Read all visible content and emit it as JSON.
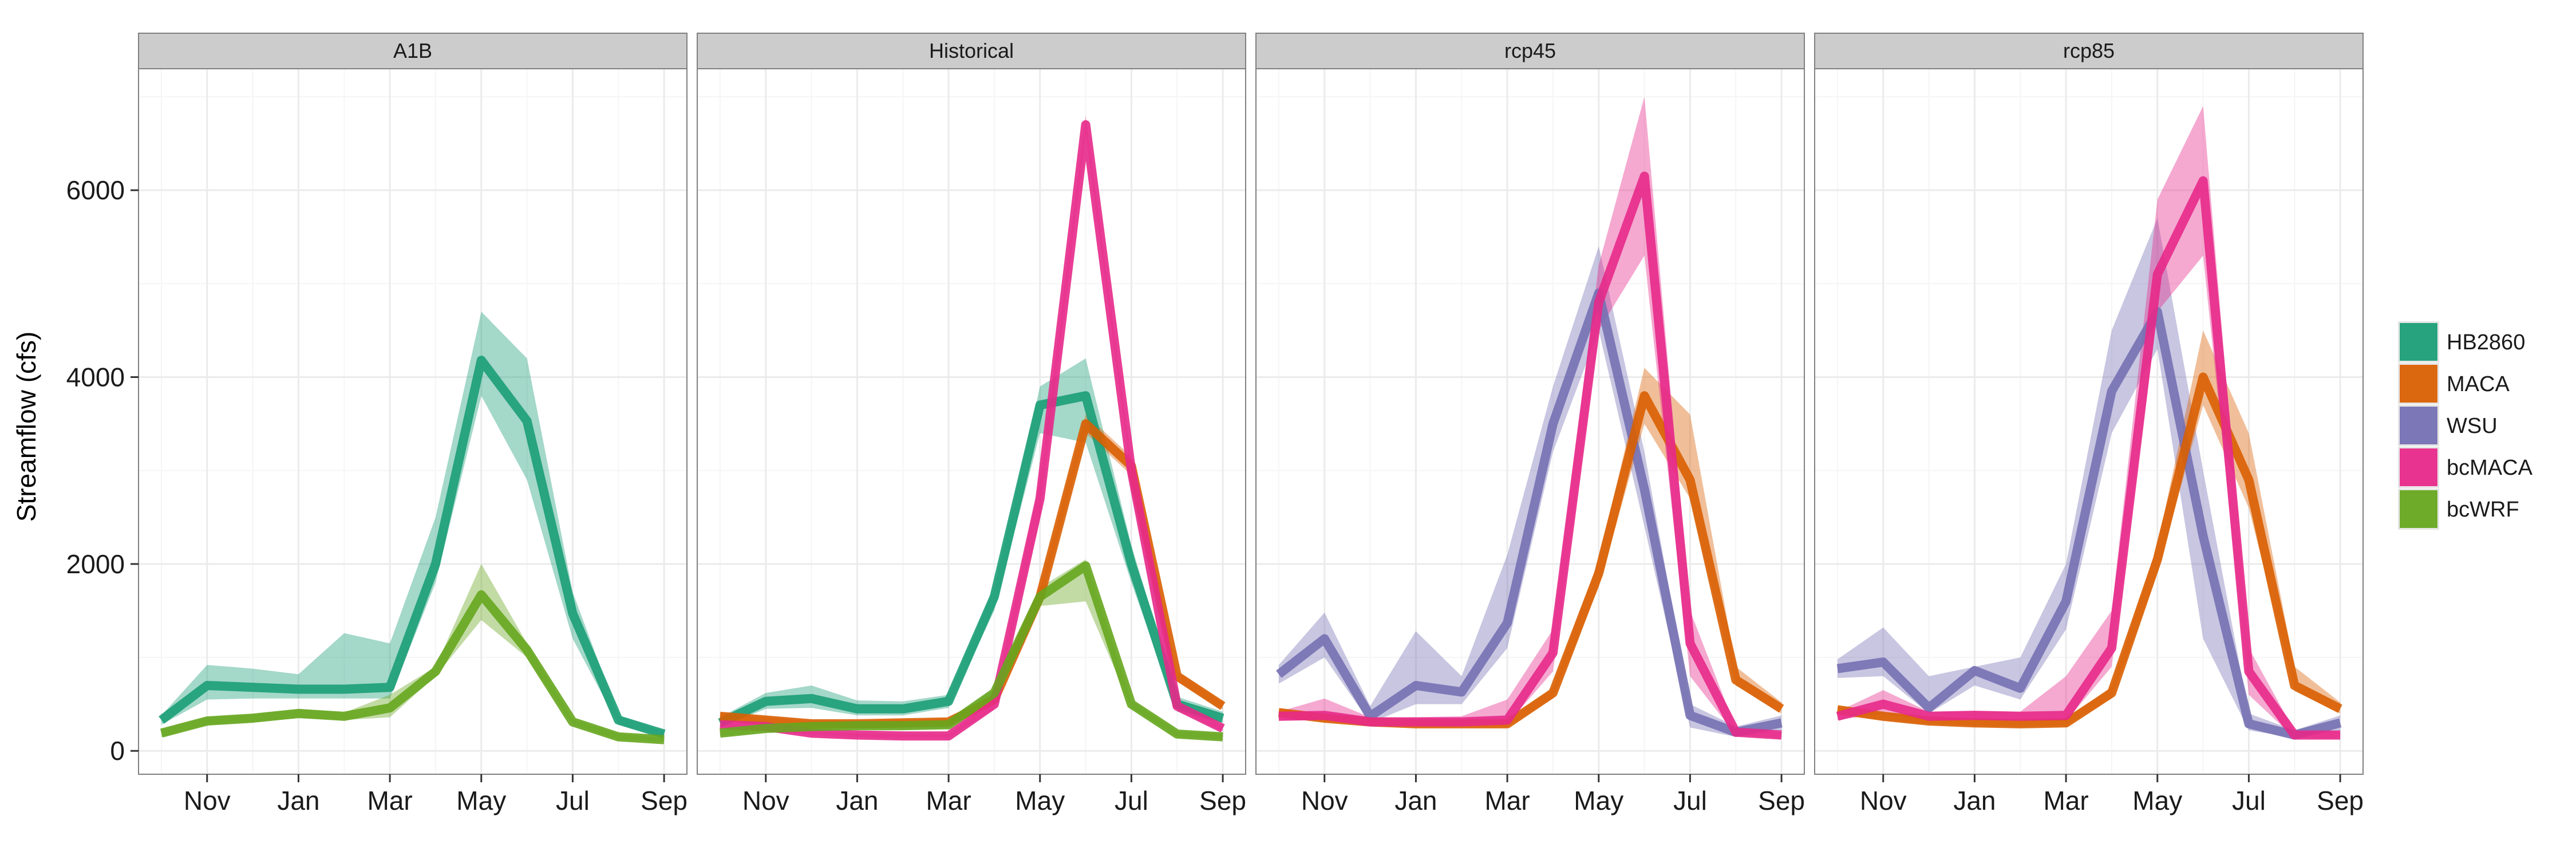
{
  "chart_data": {
    "type": "line",
    "ylabel": "Streamflow (cfs)",
    "xlabel": "",
    "months": [
      "Oct",
      "Nov",
      "Dec",
      "Jan",
      "Feb",
      "Mar",
      "Apr",
      "May",
      "Jun",
      "Jul",
      "Aug",
      "Sep"
    ],
    "x_tick_labels": [
      "Nov",
      "Jan",
      "Mar",
      "May",
      "Jul",
      "Sep"
    ],
    "y_ticks": [
      0,
      2000,
      4000,
      6000
    ],
    "ylim": [
      -250,
      7300
    ],
    "grid": true,
    "legend_position": "right",
    "legend": [
      {
        "name": "HB2860",
        "color": "#1b9e77"
      },
      {
        "name": "MACA",
        "color": "#d95f02"
      },
      {
        "name": "WSU",
        "color": "#7570b3"
      },
      {
        "name": "bcMACA",
        "color": "#e7298a"
      },
      {
        "name": "bcWRF",
        "color": "#66a61e"
      }
    ],
    "panels": [
      {
        "label": "A1B",
        "series": [
          {
            "name": "HB2860",
            "color": "#1b9e77",
            "values": [
              330,
              700,
              680,
              660,
              660,
              680,
              2000,
              4180,
              3530,
              1470,
              330,
              180
            ],
            "lower": [
              280,
              550,
              560,
              560,
              560,
              560,
              1800,
              3800,
              2900,
              1200,
              280,
              150
            ],
            "upper": [
              380,
              920,
              880,
              820,
              1260,
              1150,
              2500,
              4700,
              4200,
              1700,
              380,
              210
            ]
          },
          {
            "name": "bcWRF",
            "color": "#66a61e",
            "values": [
              190,
              320,
              350,
              400,
              370,
              460,
              850,
              1670,
              1080,
              310,
              150,
              120
            ],
            "lower": [
              150,
              280,
              310,
              350,
              330,
              360,
              800,
              1400,
              1000,
              280,
              120,
              100
            ],
            "upper": [
              230,
              360,
              390,
              450,
              410,
              600,
              900,
              2000,
              1150,
              340,
              180,
              140
            ]
          }
        ]
      },
      {
        "label": "Historical",
        "series": [
          {
            "name": "HB2860",
            "color": "#1b9e77",
            "values": [
              300,
              530,
              560,
              450,
              450,
              530,
              1650,
              3700,
              3800,
              2000,
              500,
              350
            ],
            "lower": [
              250,
              450,
              460,
              380,
              380,
              460,
              1500,
              3400,
              3300,
              1800,
              420,
              300
            ],
            "upper": [
              360,
              620,
              700,
              540,
              530,
              600,
              1750,
              3900,
              4200,
              2200,
              580,
              420
            ]
          },
          {
            "name": "MACA",
            "color": "#d95f02",
            "values": [
              370,
              330,
              290,
              290,
              300,
              310,
              550,
              1650,
              3500,
              3050,
              800,
              480
            ],
            "lower": [
              330,
              300,
              260,
              260,
              270,
              280,
              500,
              1550,
              3400,
              2950,
              750,
              440
            ],
            "upper": [
              410,
              360,
              320,
              320,
              330,
              340,
              600,
              1750,
              3600,
              3150,
              850,
              520
            ]
          },
          {
            "name": "bcMACA",
            "color": "#e7298a",
            "values": [
              280,
              260,
              190,
              170,
              160,
              160,
              500,
              2700,
              6700,
              3000,
              480,
              240
            ],
            "lower": [
              250,
              230,
              170,
              150,
              140,
              140,
              450,
              2500,
              6600,
              2900,
              440,
              210
            ],
            "upper": [
              310,
              290,
              210,
              190,
              180,
              180,
              550,
              2900,
              6800,
              3100,
              520,
              270
            ]
          },
          {
            "name": "bcWRF",
            "color": "#66a61e",
            "values": [
              190,
              240,
              260,
              270,
              270,
              280,
              620,
              1650,
              1980,
              500,
              180,
              150
            ],
            "lower": [
              160,
              210,
              230,
              240,
              240,
              250,
              580,
              1550,
              1600,
              460,
              150,
              120
            ],
            "upper": [
              220,
              270,
              290,
              300,
              300,
              320,
              660,
              1750,
              2050,
              540,
              210,
              180
            ]
          }
        ]
      },
      {
        "label": "rcp45",
        "series": [
          {
            "name": "WSU",
            "color": "#7570b3",
            "values": [
              820,
              1200,
              370,
              700,
              630,
              1370,
              3500,
              4900,
              2800,
              380,
              200,
              300
            ],
            "lower": [
              720,
              1000,
              300,
              500,
              500,
              1100,
              3200,
              4500,
              2400,
              250,
              150,
              220
            ],
            "upper": [
              920,
              1480,
              480,
              1280,
              800,
              2100,
              3900,
              5400,
              3200,
              500,
              260,
              380
            ]
          },
          {
            "name": "MACA",
            "color": "#d95f02",
            "values": [
              410,
              350,
              310,
              290,
              290,
              290,
              620,
              1900,
              3800,
              2900,
              760,
              450
            ],
            "lower": [
              370,
              310,
              280,
              260,
              260,
              260,
              560,
              1750,
              3500,
              2700,
              700,
              400
            ],
            "upper": [
              450,
              390,
              340,
              320,
              320,
              330,
              680,
              2050,
              4100,
              3600,
              900,
              520
            ]
          },
          {
            "name": "bcMACA",
            "color": "#e7298a",
            "values": [
              370,
              380,
              310,
              310,
              310,
              330,
              1050,
              4800,
              6150,
              1150,
              200,
              170
            ],
            "lower": [
              330,
              330,
              280,
              280,
              280,
              290,
              850,
              4500,
              5300,
              800,
              170,
              140
            ],
            "upper": [
              420,
              560,
              360,
              360,
              370,
              550,
              1300,
              5200,
              7000,
              1500,
              240,
              200
            ]
          }
        ]
      },
      {
        "label": "rcp85",
        "series": [
          {
            "name": "WSU",
            "color": "#7570b3",
            "values": [
              880,
              950,
              460,
              860,
              670,
              1600,
              3850,
              4700,
              2300,
              290,
              170,
              300
            ],
            "lower": [
              780,
              800,
              400,
              700,
              550,
              1300,
              3400,
              4300,
              1200,
              220,
              140,
              220
            ],
            "upper": [
              980,
              1320,
              800,
              900,
              1000,
              2000,
              4500,
              5700,
              3000,
              400,
              220,
              380
            ]
          },
          {
            "name": "MACA",
            "color": "#d95f02",
            "values": [
              440,
              370,
              320,
              300,
              290,
              300,
              620,
              2050,
              4000,
              2900,
              700,
              450
            ],
            "lower": [
              400,
              330,
              290,
              270,
              260,
              270,
              560,
              1900,
              3700,
              2600,
              640,
              400
            ],
            "upper": [
              480,
              410,
              350,
              330,
              320,
              340,
              690,
              2200,
              4500,
              3400,
              900,
              520
            ]
          },
          {
            "name": "bcMACA",
            "color": "#e7298a",
            "values": [
              370,
              500,
              370,
              380,
              370,
              380,
              1100,
              5100,
              6100,
              850,
              170,
              170
            ],
            "lower": [
              330,
              400,
              320,
              330,
              320,
              320,
              900,
              4700,
              5300,
              600,
              140,
              140
            ],
            "upper": [
              420,
              650,
              420,
              430,
              420,
              800,
              1500,
              5900,
              6900,
              1100,
              210,
              210
            ]
          }
        ]
      }
    ]
  }
}
